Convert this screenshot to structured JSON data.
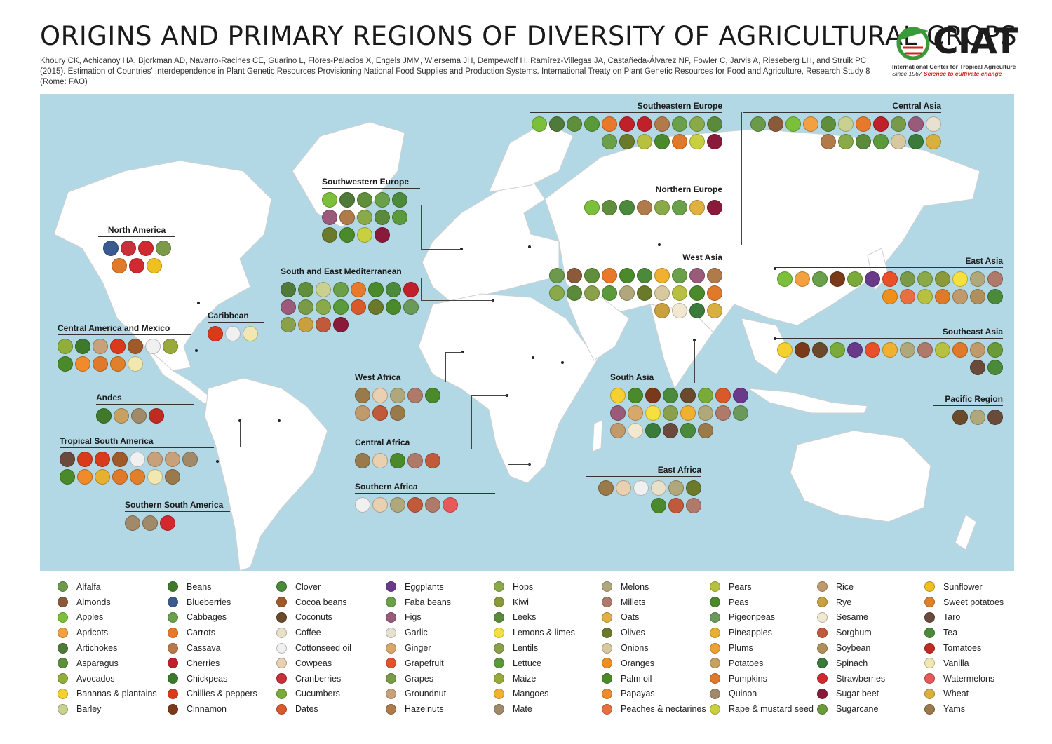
{
  "header": {
    "title": "ORIGINS AND PRIMARY REGIONS OF DIVERSITY OF AGRICULTURAL CROPS",
    "citation": "Khoury CK, Achicanoy HA, Bjorkman AD, Navarro-Racines CE, Guarino L, Flores-Palacios X, Engels JMM, Wiersema JH, Dempewolf H, Ramírez-Villegas JA, Castañeda-Álvarez NP, Fowler C, Jarvis A, Rieseberg LH, and Struik PC (2015). Estimation of Countries' Interdependence in Plant Genetic Resources Provisioning National Food Supplies and Production Systems. International Treaty on Plant Genetic Resources for Food and Agriculture, Research Study 8 (Rome: FAO)"
  },
  "logo": {
    "name": "CIAT",
    "subtitle": "International Center for Tropical Agriculture",
    "since": "Since 1967",
    "tagline": "Science to cultivate change",
    "colors": {
      "green": "#3a9a3a",
      "red": "#d0281e"
    }
  },
  "colors": {
    "ocean": "#b3d8e5",
    "land": "#ffffff",
    "border": "#cfcfcf"
  },
  "regions": [
    {
      "key": "north_america",
      "label": "North America",
      "crops": [
        "Blueberries",
        "Cranberries",
        "Strawberries",
        "Grapes",
        "Pumpkins",
        "Strawberries",
        "Sunflower"
      ]
    },
    {
      "key": "caribbean",
      "label": "Caribbean",
      "crops": [
        "Chillies & peppers",
        "Cottonseed oil",
        "Vanilla"
      ]
    },
    {
      "key": "central_america_mexico",
      "label": "Central America and Mexico",
      "crops": [
        "Avocados",
        "Beans",
        "Groundnut",
        "Chillies & peppers",
        "Cocoa beans",
        "Cottonseed oil",
        "Maize",
        "Palm oil",
        "Papayas",
        "Pumpkins",
        "Sweet potatoes",
        "Vanilla"
      ]
    },
    {
      "key": "andes",
      "label": "Andes",
      "crops": [
        "Beans",
        "Potatoes",
        "Quinoa",
        "Tomatoes"
      ]
    },
    {
      "key": "tropical_south_america",
      "label": "Tropical South America",
      "crops": [
        "Taro",
        "Chillies & peppers",
        "Chillies & peppers",
        "Cocoa beans",
        "Cottonseed oil",
        "Groundnut",
        "Groundnut",
        "Mate",
        "Palm oil",
        "Papayas",
        "Pineapples",
        "Pumpkins",
        "Sweet potatoes",
        "Vanilla",
        "Yams"
      ]
    },
    {
      "key": "southern_south_america",
      "label": "Southern South America",
      "crops": [
        "Mate",
        "Quinoa",
        "Strawberries"
      ]
    },
    {
      "key": "southwestern_europe",
      "label": "Southwestern Europe",
      "crops": [
        "Apples",
        "Artichokes",
        "Asparagus",
        "Cabbages",
        "Clover",
        "Figs",
        "Hazelnuts",
        "Hops",
        "Leeks",
        "Lettuce",
        "Olives",
        "Peas",
        "Rape & mustard seed",
        "Sugar beet"
      ]
    },
    {
      "key": "south_east_mediterranean",
      "label": "South and East Mediterranean",
      "crops": [
        "Artichokes",
        "Asparagus",
        "Barley",
        "Cabbages",
        "Carrots",
        "Peas",
        "Clover",
        "Cherries",
        "Figs",
        "Grapes",
        "Hops",
        "Lettuce",
        "Dates",
        "Olives",
        "Peas",
        "Pigeonpeas",
        "Lentils",
        "Rye",
        "Sorghum",
        "Sugar beet"
      ]
    },
    {
      "key": "southeastern_europe",
      "label": "Southeastern Europe",
      "crops": [
        "Apples",
        "Artichokes",
        "Asparagus",
        "Lettuce",
        "Carrots",
        "Cherries",
        "Cherries",
        "Hazelnuts",
        "Faba beans",
        "Hops",
        "Leeks",
        "Cabbages",
        "Olives",
        "Pears",
        "Peas",
        "Pumpkins",
        "Rape & mustard seed",
        "Sugar beet"
      ]
    },
    {
      "key": "northern_europe",
      "label": "Northern Europe",
      "crops": [
        "Apples",
        "Asparagus",
        "Clover",
        "Hazelnuts",
        "Hops",
        "Cabbages",
        "Oats",
        "Sugar beet"
      ]
    },
    {
      "key": "central_asia",
      "label": "Central Asia",
      "crops": [
        "Alfalfa",
        "Almonds",
        "Apples",
        "Apricots",
        "Asparagus",
        "Barley",
        "Carrots",
        "Cherries",
        "Grapes",
        "Figs",
        "Garlic",
        "Hazelnuts",
        "Hops",
        "Leeks",
        "Lettuce",
        "Onions",
        "Spinach",
        "Wheat"
      ]
    },
    {
      "key": "west_asia",
      "label": "West Asia",
      "crops": [
        "Alfalfa",
        "Almonds",
        "Asparagus",
        "Carrots",
        "Peas",
        "Clover",
        "Mangoes",
        "Faba beans",
        "Figs",
        "Hazelnuts",
        "Hops",
        "Leeks",
        "Lentils",
        "Lettuce",
        "Melons",
        "Olives",
        "Onions",
        "Pears",
        "Peas",
        "Pumpkins",
        "Rye",
        "Sesame",
        "Spinach",
        "Wheat"
      ]
    },
    {
      "key": "east_asia",
      "label": "East Asia",
      "crops": [
        "Apples",
        "Apricots",
        "Cabbages",
        "Cinnamon",
        "Cucumbers",
        "Eggplants",
        "Grapefruit",
        "Grapes",
        "Hops",
        "Kiwi",
        "Lemons & limes",
        "Melons",
        "Millets",
        "Oranges",
        "Peaches & nectarines",
        "Pears",
        "Pumpkins",
        "Rice",
        "Soybean",
        "Tea"
      ]
    },
    {
      "key": "southeast_asia",
      "label": "Southeast Asia",
      "crops": [
        "Bananas & plantains",
        "Cinnamon",
        "Coconuts",
        "Cucumbers",
        "Eggplants",
        "Grapefruit",
        "Mangoes",
        "Melons",
        "Millets",
        "Pears",
        "Pumpkins",
        "Rice",
        "Sugarcane",
        "Taro",
        "Tea"
      ]
    },
    {
      "key": "pacific_region",
      "label": "Pacific Region",
      "crops": [
        "Coconuts",
        "Melons",
        "Taro"
      ]
    },
    {
      "key": "south_asia",
      "label": "South Asia",
      "crops": [
        "Bananas & plantains",
        "Peas",
        "Cinnamon",
        "Clover",
        "Coconuts",
        "Cucumbers",
        "Dates",
        "Eggplants",
        "Figs",
        "Ginger",
        "Lemons & limes",
        "Lentils",
        "Mangoes",
        "Melons",
        "Millets",
        "Pigeonpeas",
        "Rice",
        "Sesame",
        "Spinach",
        "Taro",
        "Tea",
        "Yams"
      ]
    },
    {
      "key": "west_africa",
      "label": "West Africa",
      "crops": [
        "Yams",
        "Cowpeas",
        "Melons",
        "Millets",
        "Palm oil",
        "Rice",
        "Sorghum",
        "Yams"
      ]
    },
    {
      "key": "central_africa",
      "label": "Central Africa",
      "crops": [
        "Yams",
        "Cowpeas",
        "Palm oil",
        "Millets",
        "Sorghum"
      ]
    },
    {
      "key": "southern_africa",
      "label": "Southern Africa",
      "crops": [
        "Cottonseed oil",
        "Cowpeas",
        "Melons",
        "Sorghum",
        "Millets",
        "Watermelons"
      ]
    },
    {
      "key": "east_africa",
      "label": "East Africa",
      "crops": [
        "Yams",
        "Cowpeas",
        "Cottonseed oil",
        "Coffee",
        "Melons",
        "Olives",
        "Peas",
        "Sorghum",
        "Millets"
      ]
    }
  ],
  "legend": [
    {
      "label": "Alfalfa",
      "color": "#6a9a4a"
    },
    {
      "label": "Almonds",
      "color": "#8a5a3a"
    },
    {
      "label": "Apples",
      "color": "#7cbf3a"
    },
    {
      "label": "Apricots",
      "color": "#f2a040"
    },
    {
      "label": "Artichokes",
      "color": "#4f7a3a"
    },
    {
      "label": "Asparagus",
      "color": "#5f8f3a"
    },
    {
      "label": "Avocados",
      "color": "#8fae3a"
    },
    {
      "label": "Bananas & plantains",
      "color": "#f5d030"
    },
    {
      "label": "Barley",
      "color": "#c9d090"
    },
    {
      "label": "Beans",
      "color": "#3f7a2a"
    },
    {
      "label": "Blueberries",
      "color": "#3a5a90"
    },
    {
      "label": "Cabbages",
      "color": "#6aa04a"
    },
    {
      "label": "Carrots",
      "color": "#e8782a"
    },
    {
      "label": "Cassava",
      "color": "#b87a4a"
    },
    {
      "label": "Cherries",
      "color": "#c0202a"
    },
    {
      "label": "Chickpeas",
      "color": "#3a7a2a"
    },
    {
      "label": "Chillies & peppers",
      "color": "#d83a1a"
    },
    {
      "label": "Cinnamon",
      "color": "#7a3a1a"
    },
    {
      "label": "Clover",
      "color": "#4a8a3a"
    },
    {
      "label": "Cocoa beans",
      "color": "#a05a2a"
    },
    {
      "label": "Coconuts",
      "color": "#6a4a2a"
    },
    {
      "label": "Coffee",
      "color": "#e8e0c8"
    },
    {
      "label": "Cottonseed oil",
      "color": "#f0f0f0"
    },
    {
      "label": "Cowpeas",
      "color": "#e8d0b0"
    },
    {
      "label": "Cranberries",
      "color": "#c8303a"
    },
    {
      "label": "Cucumbers",
      "color": "#7aaa3a"
    },
    {
      "label": "Dates",
      "color": "#d85a2a"
    },
    {
      "label": "Eggplants",
      "color": "#6a3a8a"
    },
    {
      "label": "Faba beans",
      "color": "#6aa04a"
    },
    {
      "label": "Figs",
      "color": "#9a5a7a"
    },
    {
      "label": "Garlic",
      "color": "#e8e0d0"
    },
    {
      "label": "Ginger",
      "color": "#d8a86a"
    },
    {
      "label": "Grapefruit",
      "color": "#e8502a"
    },
    {
      "label": "Grapes",
      "color": "#7a9a4a"
    },
    {
      "label": "Groundnut",
      "color": "#c8a07a"
    },
    {
      "label": "Hazelnuts",
      "color": "#b07a4a"
    },
    {
      "label": "Hops",
      "color": "#8aaa4a"
    },
    {
      "label": "Kiwi",
      "color": "#8a9a3a"
    },
    {
      "label": "Leeks",
      "color": "#5a8a3a"
    },
    {
      "label": "Lemons & limes",
      "color": "#f5e040"
    },
    {
      "label": "Lentils",
      "color": "#8aa04a"
    },
    {
      "label": "Lettuce",
      "color": "#5a9a3a"
    },
    {
      "label": "Maize",
      "color": "#9aaa3a"
    },
    {
      "label": "Mangoes",
      "color": "#f0b030"
    },
    {
      "label": "Mate",
      "color": "#a08a6a"
    },
    {
      "label": "Melons",
      "color": "#b0a87a"
    },
    {
      "label": "Millets",
      "color": "#b07a6a"
    },
    {
      "label": "Oats",
      "color": "#e0b040"
    },
    {
      "label": "Olives",
      "color": "#6a7a2a"
    },
    {
      "label": "Onions",
      "color": "#d8c8a0"
    },
    {
      "label": "Oranges",
      "color": "#f0901a"
    },
    {
      "label": "Palm oil",
      "color": "#4a8a2a"
    },
    {
      "label": "Papayas",
      "color": "#f08a2a"
    },
    {
      "label": "Peaches & nectarines",
      "color": "#e87040"
    },
    {
      "label": "Pears",
      "color": "#b8c040"
    },
    {
      "label": "Peas",
      "color": "#4a8a2a"
    },
    {
      "label": "Pigeonpeas",
      "color": "#6a9a5a"
    },
    {
      "label": "Pineapples",
      "color": "#e8b030"
    },
    {
      "label": "Plums",
      "color": "#f0a030"
    },
    {
      "label": "Potatoes",
      "color": "#c8a060"
    },
    {
      "label": "Pumpkins",
      "color": "#e07a2a"
    },
    {
      "label": "Quinoa",
      "color": "#a08a6a"
    },
    {
      "label": "Rape & mustard seed",
      "color": "#c8d040"
    },
    {
      "label": "Rice",
      "color": "#c09a6a"
    },
    {
      "label": "Rye",
      "color": "#c8a040"
    },
    {
      "label": "Sesame",
      "color": "#f0e8d0"
    },
    {
      "label": "Sorghum",
      "color": "#c05a3a"
    },
    {
      "label": "Soybean",
      "color": "#b0905a"
    },
    {
      "label": "Spinach",
      "color": "#3a7a3a"
    },
    {
      "label": "Strawberries",
      "color": "#d02a30"
    },
    {
      "label": "Sugar beet",
      "color": "#8a1a3a"
    },
    {
      "label": "Sugarcane",
      "color": "#6a9a3a"
    },
    {
      "label": "Sunflower",
      "color": "#f0c020"
    },
    {
      "label": "Sweet potatoes",
      "color": "#e0802a"
    },
    {
      "label": "Taro",
      "color": "#6a4a3a"
    },
    {
      "label": "Tea",
      "color": "#4a8a3a"
    },
    {
      "label": "Tomatoes",
      "color": "#c02a20"
    },
    {
      "label": "Vanilla",
      "color": "#f0e8b0"
    },
    {
      "label": "Watermelons",
      "color": "#e85a5a"
    },
    {
      "label": "Wheat",
      "color": "#d8b040"
    },
    {
      "label": "Yams",
      "color": "#9a7a4a"
    }
  ]
}
